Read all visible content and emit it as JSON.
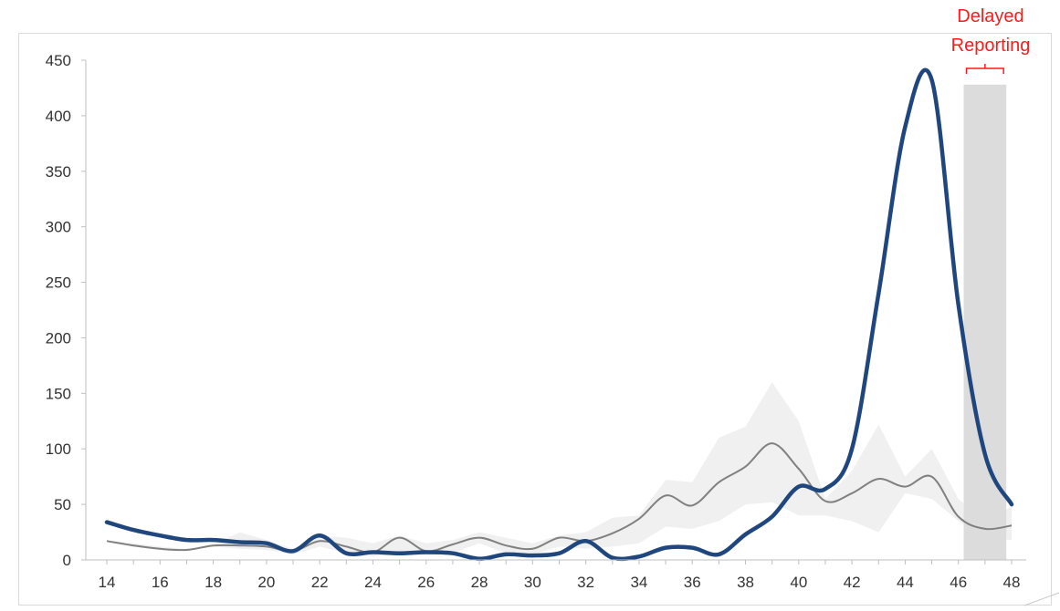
{
  "chart_data": {
    "type": "line",
    "title": "",
    "xlabel": "",
    "ylabel": "",
    "x": [
      14,
      15,
      16,
      17,
      18,
      19,
      20,
      21,
      22,
      23,
      24,
      25,
      26,
      27,
      28,
      29,
      30,
      31,
      32,
      33,
      34,
      35,
      36,
      37,
      38,
      39,
      40,
      41,
      42,
      43,
      44,
      45,
      46,
      47,
      48
    ],
    "xticks": [
      14,
      16,
      18,
      20,
      22,
      24,
      26,
      28,
      30,
      32,
      34,
      36,
      38,
      40,
      42,
      44,
      46,
      48
    ],
    "yticks": [
      0,
      50,
      100,
      150,
      200,
      250,
      300,
      350,
      400,
      450
    ],
    "ylim": [
      0,
      450
    ],
    "xlim": [
      14,
      48
    ],
    "grid": false,
    "series": [
      {
        "role": "current",
        "color": "#1f477d",
        "values": [
          34,
          27,
          22,
          18,
          18,
          16,
          15,
          8,
          22,
          6,
          7,
          6,
          7,
          6,
          1,
          5,
          4,
          6,
          17,
          2,
          3,
          11,
          11,
          5,
          23,
          39,
          66,
          64,
          100,
          240,
          390,
          432,
          230,
          95,
          50
        ]
      },
      {
        "role": "mean",
        "color": "#808080",
        "values": [
          17,
          13,
          10,
          9,
          13,
          13,
          12,
          8,
          17,
          12,
          7,
          20,
          8,
          14,
          20,
          13,
          10,
          20,
          17,
          24,
          37,
          58,
          49,
          70,
          84,
          105,
          82,
          53,
          60,
          73,
          66,
          75,
          39,
          28,
          31
        ]
      },
      {
        "role": "range-upper",
        "color": "#f0f0f0",
        "values": [
          17,
          15,
          12,
          10,
          14,
          25,
          18,
          10,
          22,
          20,
          15,
          22,
          15,
          18,
          25,
          20,
          15,
          22,
          25,
          38,
          40,
          72,
          70,
          110,
          120,
          160,
          125,
          55,
          80,
          122,
          75,
          100,
          55,
          35,
          48
        ]
      },
      {
        "role": "range-lower",
        "color": "#f0f0f0",
        "values": [
          17,
          12,
          9,
          8,
          12,
          10,
          9,
          5,
          12,
          6,
          3,
          6,
          4,
          6,
          15,
          6,
          5,
          12,
          10,
          12,
          15,
          30,
          28,
          35,
          50,
          52,
          40,
          40,
          35,
          25,
          60,
          55,
          35,
          20,
          18
        ]
      }
    ],
    "shaded_region": {
      "x_from": 46.2,
      "x_to": 47.8,
      "y_top": 428,
      "color": "#dcdcdc"
    },
    "annotation": {
      "line1": "Delayed",
      "line2": "Reporting",
      "color": "#ff1a1a"
    }
  }
}
